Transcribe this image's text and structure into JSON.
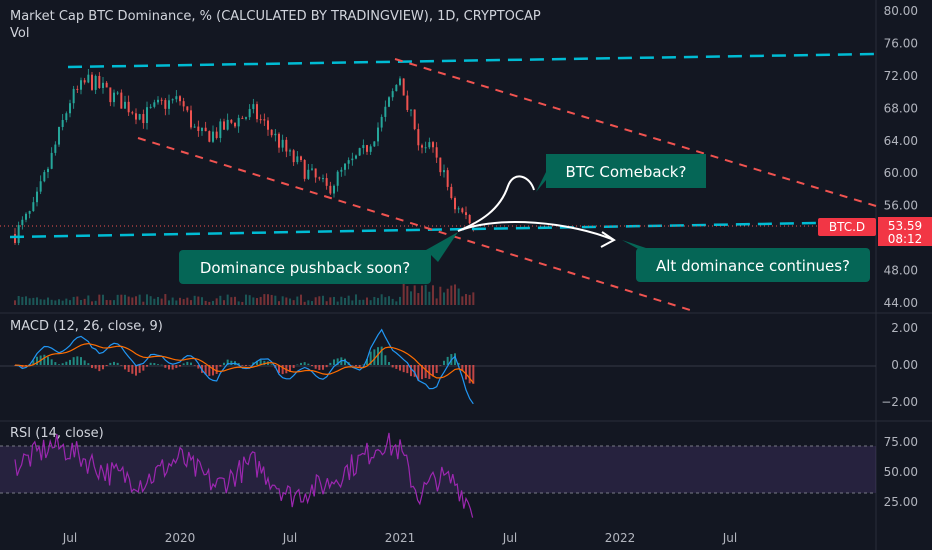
{
  "header": {
    "title": "Market Cap BTC Dominance, % (CALCULATED BY TRADINGVIEW), 1D, CRYPTOCAP",
    "vol_label": "Vol"
  },
  "colors": {
    "background": "#131722",
    "up": "#26a69a",
    "down": "#ef5350",
    "channel": "#00bcd4",
    "macd_line": "#2196f3",
    "signal_line": "#ff6d00",
    "rsi_line": "#9c27b0",
    "rsi_band": "#7e57c2",
    "axis_text": "#b2b5be",
    "callout_bg": "#056656",
    "label_red": "#f23645"
  },
  "main_panel": {
    "price_axis_ticks": [
      "80.00",
      "76.00",
      "72.00",
      "68.00",
      "64.00",
      "60.00",
      "56.00",
      "52.00",
      "48.00",
      "44.00"
    ],
    "symbol_tag": "BTC.D",
    "last_price": "53.59",
    "countdown": "08:12",
    "annotations": [
      {
        "id": "btc-comeback",
        "text": "BTC Comeback?"
      },
      {
        "id": "dominance-pushback",
        "text": "Dominance pushback soon?"
      },
      {
        "id": "alt-dominance",
        "text": "Alt dominance continues?"
      }
    ]
  },
  "macd_panel": {
    "label": "MACD (12, 26, close, 9)",
    "axis_ticks": [
      "2.00",
      "0.00",
      "−2.00"
    ]
  },
  "rsi_panel": {
    "label": "RSI (14, close)",
    "axis_ticks": [
      "75.00",
      "50.00",
      "25.00"
    ]
  },
  "time_axis": {
    "ticks": [
      "Jul",
      "2020",
      "Jul",
      "2021",
      "Jul",
      "2022",
      "Jul"
    ]
  },
  "chart_data": [
    {
      "type": "line",
      "name": "Market Cap BTC Dominance",
      "x": [
        "2019-04",
        "2019-05",
        "2019-06",
        "2019-07",
        "2019-08",
        "2019-09",
        "2019-10",
        "2019-11",
        "2019-12",
        "2020-01",
        "2020-02",
        "2020-03",
        "2020-04",
        "2020-05",
        "2020-06",
        "2020-07",
        "2020-08",
        "2020-09",
        "2020-10",
        "2020-11",
        "2020-12",
        "2021-01",
        "2021-02",
        "2021-03",
        "2021-04",
        "2021-05"
      ],
      "y": [
        52.5,
        55.5,
        62.0,
        69.0,
        71.5,
        70.0,
        68.5,
        67.0,
        68.5,
        69.0,
        64.5,
        65.0,
        66.5,
        67.5,
        65.0,
        62.0,
        60.0,
        58.0,
        60.5,
        62.5,
        66.5,
        72.0,
        64.0,
        62.0,
        56.0,
        53.59
      ],
      "ylim": [
        44,
        80
      ]
    },
    {
      "type": "line",
      "name": "MACD (12, 26, close, 9)",
      "x": [
        "2019-04",
        "2019-06",
        "2019-07",
        "2019-09",
        "2019-11",
        "2020-01",
        "2020-03",
        "2020-05",
        "2020-07",
        "2020-09",
        "2020-11",
        "2020-12",
        "2021-01",
        "2021-02",
        "2021-03",
        "2021-04",
        "2021-05"
      ],
      "y": [
        0.0,
        0.8,
        1.2,
        1.0,
        0.2,
        0.4,
        -0.6,
        0.3,
        -0.5,
        -0.4,
        0.2,
        1.6,
        0.8,
        -1.2,
        -0.8,
        0.1,
        -1.8
      ],
      "ylim": [
        -2.6,
        2.6
      ]
    },
    {
      "type": "line",
      "name": "RSI (14, close)",
      "x": [
        "2019-04",
        "2019-06",
        "2019-07",
        "2019-09",
        "2019-11",
        "2020-01",
        "2020-03",
        "2020-05",
        "2020-07",
        "2020-09",
        "2020-11",
        "2020-12",
        "2021-01",
        "2021-02",
        "2021-03",
        "2021-04",
        "2021-05"
      ],
      "y": [
        55,
        72,
        68,
        50,
        42,
        62,
        38,
        58,
        30,
        40,
        62,
        75,
        68,
        30,
        45,
        42,
        18
      ],
      "ylim": [
        10,
        90
      ],
      "bands": [
        30,
        70
      ]
    }
  ]
}
